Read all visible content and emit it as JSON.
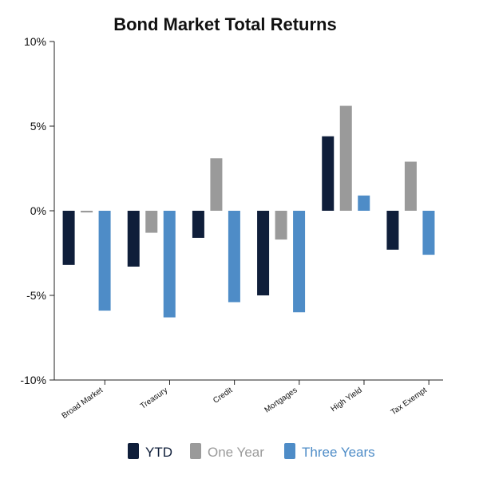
{
  "chart_data": {
    "type": "bar",
    "title": "Bond Market Total Returns",
    "xlabel": "",
    "ylabel": "",
    "categories": [
      "Broad Market",
      "Treasury",
      "Credit",
      "Mortgages",
      "High Yield",
      "Tax Exempt"
    ],
    "series": [
      {
        "name": "YTD",
        "color": "#0f1e3a",
        "values": [
          -3.2,
          -3.3,
          -1.6,
          -5.0,
          4.4,
          -2.3
        ]
      },
      {
        "name": "One Year",
        "color": "#9a9a9a",
        "values": [
          -0.1,
          -1.3,
          3.1,
          -1.7,
          6.2,
          2.9
        ]
      },
      {
        "name": "Three Years",
        "color": "#4e8cc7",
        "values": [
          -5.9,
          -6.3,
          -5.4,
          -6.0,
          0.9,
          -2.6
        ]
      }
    ],
    "ylim": [
      -10,
      10
    ],
    "yticks": [
      10,
      5,
      0,
      -5,
      -10
    ],
    "ytick_labels": [
      "10%",
      "5%",
      "0%",
      "-5%",
      "-10%"
    ],
    "grid": false,
    "legend_position": "bottom"
  }
}
